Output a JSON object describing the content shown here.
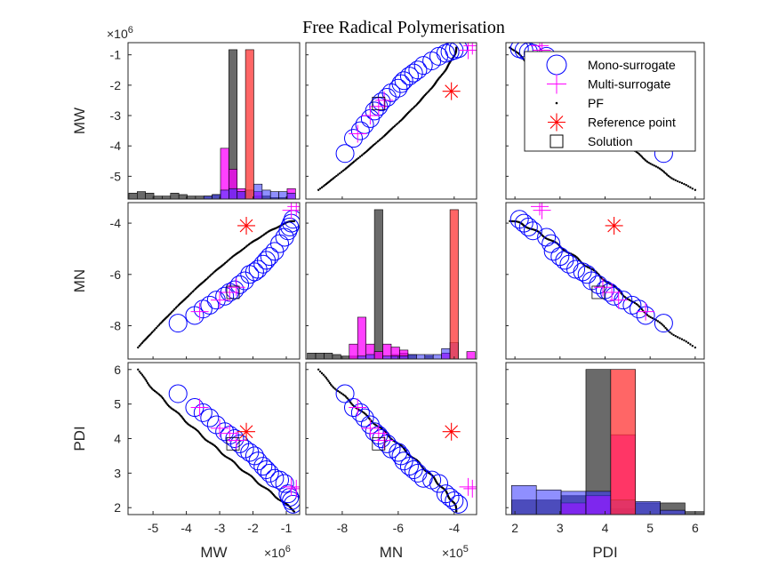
{
  "chart_data": {
    "type": "scatter",
    "title": "Free Radical Polymerisation",
    "variables": [
      "MW",
      "MN",
      "PDI"
    ],
    "axis_exponents": {
      "MW": "×10^6",
      "MN": "×10^5",
      "PDI": ""
    },
    "ranges": {
      "MW": [
        -5.75,
        -0.6
      ],
      "MN": [
        -9.3,
        -3.2
      ],
      "PDI": [
        1.8,
        6.2
      ]
    },
    "ticks": {
      "MW": [
        -5,
        -4,
        -3,
        -2,
        -1
      ],
      "MN": [
        -8,
        -6,
        -4
      ],
      "PDI": [
        2,
        3,
        4,
        5,
        6
      ]
    },
    "tick_labels": {
      "MW": [
        "-5",
        "-4",
        "-3",
        "-2",
        "-1"
      ],
      "MN": [
        "-8",
        "-6",
        "-4"
      ],
      "PDI": [
        "2",
        "3",
        "4",
        "5",
        "6"
      ]
    },
    "series": [
      {
        "name": "Mono-surrogate",
        "marker": "circle",
        "color": "#0000ff",
        "points": [
          {
            "MW": -4.25,
            "MN": -7.9,
            "PDI": 5.3
          },
          {
            "MW": -3.75,
            "MN": -7.6,
            "PDI": 4.9
          },
          {
            "MW": -3.5,
            "MN": -7.35,
            "PDI": 4.75
          },
          {
            "MW": -3.3,
            "MN": -7.2,
            "PDI": 4.6
          },
          {
            "MW": -3.1,
            "MN": -7.0,
            "PDI": 4.4
          },
          {
            "MW": -2.85,
            "MN": -6.85,
            "PDI": 4.2
          },
          {
            "MW": -2.7,
            "MN": -6.7,
            "PDI": 4.1
          },
          {
            "MW": -2.55,
            "MN": -6.6,
            "PDI": 4.0
          },
          {
            "MW": -2.4,
            "MN": -6.4,
            "PDI": 3.85
          },
          {
            "MW": -2.25,
            "MN": -6.25,
            "PDI": 3.7
          },
          {
            "MW": -2.1,
            "MN": -6.0,
            "PDI": 3.6
          },
          {
            "MW": -1.95,
            "MN": -5.9,
            "PDI": 3.5
          },
          {
            "MW": -1.85,
            "MN": -5.8,
            "PDI": 3.35
          },
          {
            "MW": -1.7,
            "MN": -5.6,
            "PDI": 3.2
          },
          {
            "MW": -1.6,
            "MN": -5.45,
            "PDI": 3.1
          },
          {
            "MW": -1.5,
            "MN": -5.3,
            "PDI": 3.0
          },
          {
            "MW": -1.35,
            "MN": -5.1,
            "PDI": 2.85
          },
          {
            "MW": -1.2,
            "MN": -4.8,
            "PDI": 2.8
          },
          {
            "MW": -1.05,
            "MN": -4.55,
            "PDI": 2.7
          },
          {
            "MW": -0.95,
            "MN": -4.3,
            "PDI": 2.4
          },
          {
            "MW": -0.9,
            "MN": -4.15,
            "PDI": 2.3
          },
          {
            "MW": -0.85,
            "MN": -4.0,
            "PDI": 2.2
          },
          {
            "MW": -0.8,
            "MN": -3.85,
            "PDI": 2.1
          }
        ]
      },
      {
        "name": "Multi-surrogate",
        "marker": "plus",
        "color": "#ff00ff",
        "points": [
          {
            "MW": -3.6,
            "MN": -7.45,
            "PDI": 4.9
          },
          {
            "MW": -3.0,
            "MN": -7.0,
            "PDI": 4.3
          },
          {
            "MW": -2.7,
            "MN": -6.7,
            "PDI": 4.15
          },
          {
            "MW": -2.5,
            "MN": -6.5,
            "PDI": 3.95
          },
          {
            "MW": -0.85,
            "MN": -3.5,
            "PDI": 2.6
          },
          {
            "MW": -0.7,
            "MN": -3.35,
            "PDI": 2.55
          }
        ]
      },
      {
        "name": "PF",
        "marker": "dot",
        "color": "#000000",
        "points": []
      },
      {
        "name": "Reference point",
        "marker": "asterisk",
        "color": "#ff0000",
        "points": [
          {
            "MW": -2.2,
            "MN": -4.1,
            "PDI": 4.2
          }
        ]
      },
      {
        "name": "Solution",
        "marker": "square",
        "color": "#000000",
        "points": [
          {
            "MW": -2.6,
            "MN": -6.7,
            "PDI": 3.85
          }
        ]
      }
    ],
    "pareto_front": {
      "MW": [
        -5.45,
        -0.75
      ],
      "MN": [
        -8.85,
        -3.9
      ],
      "PDI": [
        6.0,
        1.9
      ]
    },
    "histograms": {
      "MW": {
        "bar_width": 0.25,
        "layers": [
          {
            "color": "#505050",
            "opacity": 0.85,
            "bins": [
              [
                -5.6,
                0.04
              ],
              [
                -5.35,
                0.05
              ],
              [
                -5.1,
                0.04
              ],
              [
                -4.85,
                0.02
              ],
              [
                -4.6,
                0.02
              ],
              [
                -4.35,
                0.04
              ],
              [
                -4.1,
                0.03
              ],
              [
                -3.85,
                0.02
              ],
              [
                -3.6,
                0.02
              ],
              [
                -3.35,
                0.02
              ],
              [
                -3.1,
                0.03
              ],
              [
                -2.6,
                1.0
              ],
              [
                -2.35,
                0.05
              ],
              [
                -1.85,
                0.02
              ],
              [
                -1.6,
                0.02
              ],
              [
                -1.35,
                0.01
              ],
              [
                -1.1,
                0.01
              ]
            ]
          },
          {
            "color": "#ff00ff",
            "opacity": 0.75,
            "bins": [
              [
                -2.85,
                0.34
              ],
              [
                -2.6,
                0.2
              ],
              [
                -2.35,
                0.07
              ],
              [
                -1.85,
                0.05
              ],
              [
                -0.85,
                0.07
              ]
            ]
          },
          {
            "color": "#3333ff",
            "opacity": 0.55,
            "bins": [
              [
                -3.35,
                0.02
              ],
              [
                -3.1,
                0.03
              ],
              [
                -2.85,
                0.06
              ],
              [
                -2.6,
                0.07
              ],
              [
                -2.35,
                0.05
              ],
              [
                -2.1,
                0.06
              ],
              [
                -1.85,
                0.1
              ],
              [
                -1.6,
                0.06
              ],
              [
                -1.35,
                0.05
              ],
              [
                -1.1,
                0.05
              ],
              [
                -0.85,
                0.04
              ]
            ]
          },
          {
            "color": "#ff3333",
            "opacity": 0.75,
            "bins": [
              [
                -2.1,
                1.0
              ]
            ]
          }
        ]
      },
      "MN": {
        "bar_width": 0.3,
        "layers": [
          {
            "color": "#505050",
            "opacity": 0.85,
            "bins": [
              [
                -9.1,
                0.04
              ],
              [
                -8.8,
                0.04
              ],
              [
                -8.5,
                0.04
              ],
              [
                -8.2,
                0.03
              ],
              [
                -7.9,
                0.02
              ],
              [
                -7.6,
                0.02
              ],
              [
                -6.7,
                1.0
              ],
              [
                -6.1,
                0.03
              ],
              [
                -5.8,
                0.04
              ],
              [
                -5.5,
                0.03
              ],
              [
                -4.9,
                0.02
              ]
            ]
          },
          {
            "color": "#ff00ff",
            "opacity": 0.75,
            "bins": [
              [
                -7.6,
                0.1
              ],
              [
                -7.3,
                0.28
              ],
              [
                -7.0,
                0.1
              ],
              [
                -6.7,
                0.05
              ],
              [
                -6.4,
                0.1
              ],
              [
                -6.1,
                0.08
              ],
              [
                -5.8,
                0.06
              ],
              [
                -4.3,
                0.04
              ],
              [
                -3.4,
                0.05
              ]
            ]
          },
          {
            "color": "#3333ff",
            "opacity": 0.55,
            "bins": [
              [
                -7.3,
                0.02
              ],
              [
                -7.0,
                0.03
              ],
              [
                -6.4,
                0.02
              ],
              [
                -6.1,
                0.02
              ],
              [
                -5.8,
                0.02
              ],
              [
                -5.5,
                0.03
              ],
              [
                -5.2,
                0.03
              ],
              [
                -4.9,
                0.03
              ],
              [
                -4.6,
                0.03
              ],
              [
                -4.3,
                0.07
              ],
              [
                -4.0,
                0.11
              ]
            ]
          },
          {
            "color": "#ff3333",
            "opacity": 0.75,
            "bins": [
              [
                -4.0,
                1.0
              ]
            ]
          }
        ]
      },
      "PDI": {
        "bar_width": 0.55,
        "layers": [
          {
            "color": "#505050",
            "opacity": 0.85,
            "bins": [
              [
                2.2,
                0.1
              ],
              [
                2.75,
                0.1
              ],
              [
                3.3,
                0.13
              ],
              [
                3.85,
                1.0
              ],
              [
                4.4,
                0.04
              ],
              [
                4.95,
                0.08
              ],
              [
                5.5,
                0.08
              ],
              [
                6.05,
                0.02
              ]
            ]
          },
          {
            "color": "#ff00ff",
            "opacity": 0.75,
            "bins": [
              [
                3.3,
                0.08
              ],
              [
                3.85,
                0.13
              ],
              [
                4.4,
                0.55
              ]
            ]
          },
          {
            "color": "#3333ff",
            "opacity": 0.55,
            "bins": [
              [
                2.2,
                0.2
              ],
              [
                2.75,
                0.17
              ],
              [
                3.3,
                0.16
              ],
              [
                3.85,
                0.16
              ],
              [
                4.4,
                0.1
              ],
              [
                4.95,
                0.09
              ],
              [
                5.5,
                0.03
              ]
            ]
          },
          {
            "color": "#ff3333",
            "opacity": 0.75,
            "bins": [
              [
                4.4,
                1.0
              ]
            ]
          }
        ]
      }
    },
    "legend": {
      "placement": "top-right",
      "entries": [
        "Mono-surrogate",
        "Multi-surrogate",
        "PF",
        "Reference point",
        "Solution"
      ]
    }
  }
}
